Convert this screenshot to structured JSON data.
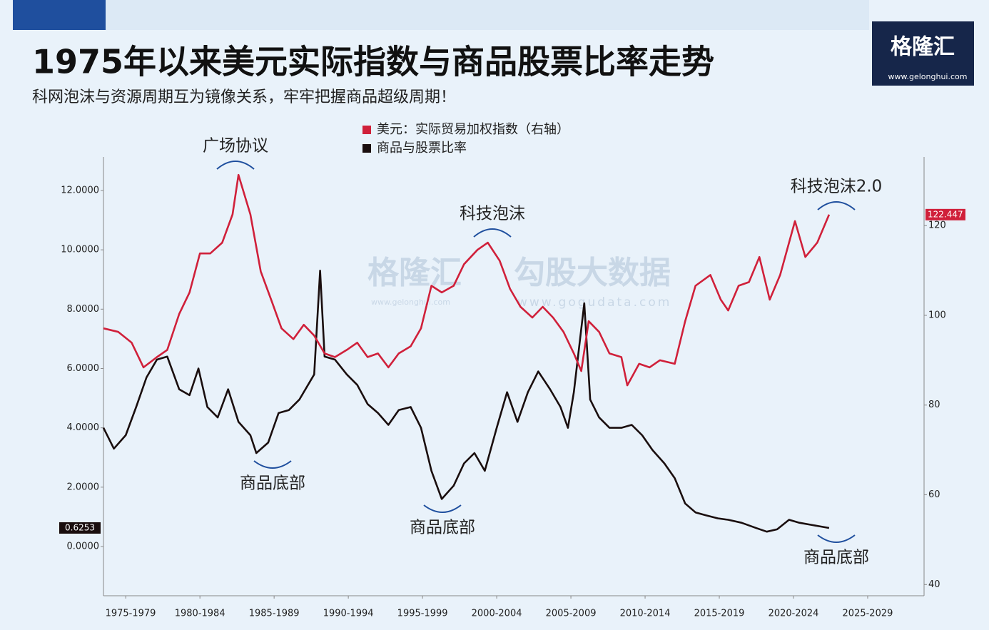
{
  "chart_data": {
    "type": "line",
    "title": "1975年以来美元实际指数与商品股票比率走势",
    "subtitle": "科网泡沫与资源周期互为镜像关系，牢牢把握商品超级周期！",
    "xlim": [
      1976,
      2031.3
    ],
    "xticks": [
      {
        "value": 1977.5,
        "label": "1975-1979"
      },
      {
        "value": 1982.5,
        "label": "1980-1984"
      },
      {
        "value": 1987.5,
        "label": "1985-1989"
      },
      {
        "value": 1992.5,
        "label": "1990-1994"
      },
      {
        "value": 1997.5,
        "label": "1995-1999"
      },
      {
        "value": 2002.5,
        "label": "2000-2004"
      },
      {
        "value": 2007.5,
        "label": "2005-2009"
      },
      {
        "value": 2012.5,
        "label": "2010-2014"
      },
      {
        "value": 2017.5,
        "label": "2015-2019"
      },
      {
        "value": 2022.5,
        "label": "2020-2024"
      },
      {
        "value": 2027.5,
        "label": "2025-2029"
      }
    ],
    "ylim": [
      -1.66,
      13.13
    ],
    "yticks": [
      {
        "value": 0,
        "label": "0.0000"
      },
      {
        "value": 2,
        "label": "2.0000"
      },
      {
        "value": 4,
        "label": "4.0000"
      },
      {
        "value": 6,
        "label": "6.0000"
      },
      {
        "value": 8,
        "label": "8.0000"
      },
      {
        "value": 10,
        "label": "10.0000"
      },
      {
        "value": 12,
        "label": "12.0000"
      }
    ],
    "y2lim": [
      37.5,
      135.3
    ],
    "y2ticks": [
      40,
      60,
      80,
      100,
      120
    ],
    "legend": "top-center",
    "series": [
      {
        "name": "商品与股票比率",
        "color": "#1a0e0e",
        "x": [
          1976.0,
          1976.7,
          1977.5,
          1978.2,
          1978.9,
          1979.6,
          1980.3,
          1981.1,
          1981.8,
          1982.4,
          1983.0,
          1983.7,
          1984.4,
          1985.1,
          1985.9,
          1986.3,
          1987.1,
          1987.8,
          1988.5,
          1989.2,
          1990.2,
          1990.6,
          1990.9,
          1991.6,
          1992.4,
          1993.1,
          1993.8,
          1994.5,
          1995.2,
          1995.9,
          1996.7,
          1997.4,
          1998.1,
          1998.8,
          1999.6,
          2000.3,
          2001.0,
          2001.7,
          2002.5,
          2003.2,
          2003.9,
          2004.6,
          2005.3,
          2006.1,
          2006.8,
          2007.3,
          2007.7,
          2008.4,
          2008.8,
          2009.4,
          2010.1,
          2010.9,
          2011.6,
          2012.3,
          2013.0,
          2013.8,
          2014.5,
          2015.2,
          2015.9,
          2016.6,
          2017.4,
          2018.1,
          2019.0,
          2020.0,
          2020.7,
          2021.4,
          2022.2,
          2022.9,
          2023.8,
          2024.9
        ],
        "values": [
          4.0,
          3.3,
          3.75,
          4.7,
          5.7,
          6.3,
          6.4,
          5.3,
          5.1,
          6.0,
          4.7,
          4.35,
          5.3,
          4.2,
          3.75,
          3.15,
          3.5,
          4.5,
          4.6,
          4.95,
          5.8,
          9.3,
          6.4,
          6.3,
          5.8,
          5.45,
          4.8,
          4.5,
          4.1,
          4.6,
          4.7,
          4.0,
          2.55,
          1.6,
          2.05,
          2.8,
          3.15,
          2.55,
          4.0,
          5.2,
          4.2,
          5.2,
          5.9,
          5.3,
          4.7,
          4.0,
          5.2,
          8.2,
          4.95,
          4.35,
          4.0,
          4.0,
          4.1,
          3.75,
          3.25,
          2.8,
          2.3,
          1.45,
          1.15,
          1.05,
          0.95,
          0.9,
          0.8,
          0.62,
          0.5,
          0.58,
          0.9,
          0.8,
          0.72,
          0.6253
        ]
      },
      {
        "name": "美元：实际贸易加权指数（右轴）",
        "color": "#d0203a",
        "axis": "y2",
        "x": [
          1976.0,
          1977.0,
          1977.9,
          1978.7,
          1979.6,
          1980.3,
          1981.1,
          1981.8,
          1982.5,
          1983.2,
          1984.0,
          1984.7,
          1985.1,
          1985.9,
          1986.6,
          1987.3,
          1988.0,
          1988.8,
          1989.5,
          1990.2,
          1990.9,
          1991.6,
          1992.4,
          1993.1,
          1993.8,
          1994.5,
          1995.2,
          1995.9,
          1996.7,
          1997.4,
          1998.1,
          1998.8,
          1999.6,
          2000.3,
          2001.2,
          2001.9,
          2002.7,
          2003.4,
          2004.1,
          2004.9,
          2005.6,
          2006.3,
          2007.0,
          2007.7,
          2008.2,
          2008.7,
          2009.4,
          2010.1,
          2010.9,
          2011.3,
          2012.1,
          2012.8,
          2013.5,
          2014.5,
          2015.2,
          2015.9,
          2016.9,
          2017.6,
          2018.1,
          2018.8,
          2019.5,
          2020.2,
          2020.9,
          2021.6,
          2022.6,
          2023.3,
          2024.1,
          2024.9
        ],
        "values": [
          97.1,
          96.3,
          93.9,
          88.4,
          90.7,
          92.3,
          100.3,
          105.1,
          113.8,
          113.8,
          116.2,
          122.5,
          131.3,
          122.5,
          109.8,
          103.5,
          97.1,
          94.7,
          97.9,
          95.5,
          91.5,
          90.7,
          92.3,
          93.9,
          90.7,
          91.5,
          88.4,
          91.5,
          93.1,
          97.1,
          106.6,
          105.1,
          106.6,
          111.4,
          114.6,
          116.2,
          112.2,
          105.9,
          101.9,
          99.5,
          101.9,
          99.5,
          96.3,
          91.5,
          87.6,
          98.7,
          96.3,
          91.5,
          90.7,
          84.4,
          89.2,
          88.4,
          90.0,
          89.2,
          98.7,
          106.6,
          109.0,
          103.5,
          101.1,
          106.6,
          107.4,
          113.0,
          103.5,
          109.0,
          121.0,
          113.0,
          116.2,
          122.447
        ]
      }
    ],
    "annotations": [
      "广场协议",
      "科技泡沫",
      "科技泡沫2.0",
      "商品底部",
      "商品底部",
      "商品底部"
    ]
  },
  "logo": {
    "name": "格隆汇",
    "url": "www.gelonghui.com"
  },
  "watermark": {
    "left": "格隆汇",
    "left_url": "www.gelonghui.com",
    "right": "勾股大数据",
    "right_url": "www.gogudata.com"
  }
}
